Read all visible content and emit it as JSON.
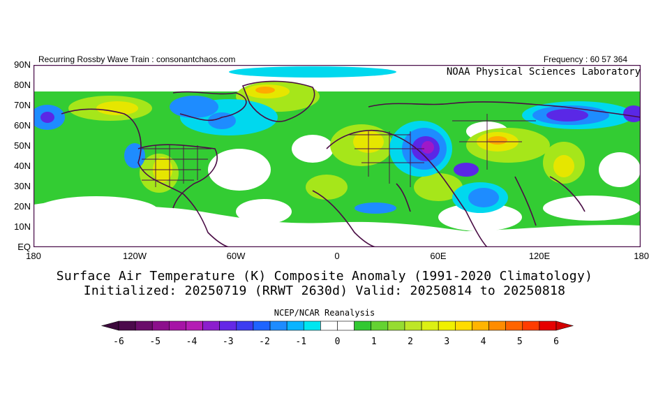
{
  "header": {
    "left_text": "Recurring Rossby Wave Train : consonantchaos.com",
    "right_text": "Frequency : 60 57 364",
    "lab_name": "NOAA Physical Sciences Laboratory"
  },
  "map": {
    "lat_labels": [
      "90N",
      "80N",
      "70N",
      "60N",
      "50N",
      "40N",
      "30N",
      "20N",
      "10N",
      "EQ"
    ],
    "lon_labels": [
      "180",
      "120W",
      "60W",
      "0",
      "60E",
      "120E",
      "180"
    ],
    "colors": {
      "frame": "#4b0f4b",
      "coast": "#4a0d45",
      "zero": "#ffffff",
      "pos1": "#33cc33",
      "pos2": "#a6e61a",
      "pos3": "#e6e600",
      "pos4": "#ffaa00",
      "neg1": "#00d8ee",
      "neg2": "#1e8cff",
      "neg3": "#5a28e6",
      "neg4": "#9e19c8"
    }
  },
  "title": {
    "line1": "Surface Air Temperature (K) Composite Anomaly (1991-2020 Climatology)",
    "line2": "Initialized: 20250719 (RRWT 2630d) Valid: 20250814 to 20250818"
  },
  "source": "NCEP/NCAR Reanalysis",
  "colorbar": {
    "ticks": [
      "-6",
      "-5",
      "-4",
      "-3",
      "-2",
      "-1",
      "0",
      "1",
      "2",
      "3",
      "4",
      "5",
      "6"
    ],
    "under_color": "#3d0a3d",
    "over_color": "#d20000",
    "swatches": [
      "#4b0a4b",
      "#6a0d6a",
      "#8c0f8c",
      "#a614a6",
      "#b41eb4",
      "#8c1ecd",
      "#6428e6",
      "#3c3cf0",
      "#1e64ff",
      "#1e8cff",
      "#0ab4ff",
      "#00e6f0",
      "#ffffff",
      "#ffffff",
      "#32c832",
      "#64d232",
      "#96dc32",
      "#bee628",
      "#dcf014",
      "#f0f000",
      "#ffdc00",
      "#ffb400",
      "#ff8c00",
      "#ff6400",
      "#ff3c00",
      "#e60000"
    ]
  }
}
